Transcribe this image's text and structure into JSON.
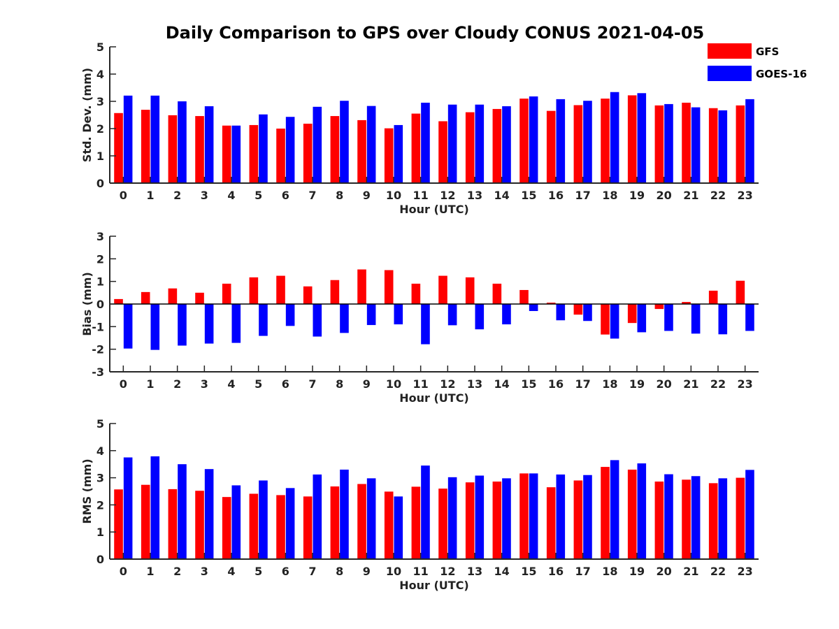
{
  "figure": {
    "title": "Daily Comparison to GPS over Cloudy CONUS 2021-04-05"
  },
  "legend": {
    "placement": "top-right",
    "items": [
      {
        "name": "GFS",
        "color": "#ff0000"
      },
      {
        "name": "GOES-16",
        "color": "#0000ff"
      }
    ]
  },
  "chart_data": [
    {
      "type": "bar",
      "xlabel": "Hour (UTC)",
      "ylabel": "Std. Dev. (mm)",
      "ylim": [
        0,
        5
      ],
      "yticks": [
        0,
        1,
        2,
        3,
        4,
        5
      ],
      "categories": [
        "0",
        "1",
        "2",
        "3",
        "4",
        "5",
        "6",
        "7",
        "8",
        "9",
        "10",
        "11",
        "12",
        "13",
        "14",
        "15",
        "16",
        "17",
        "18",
        "19",
        "20",
        "21",
        "22",
        "23"
      ],
      "series": [
        {
          "name": "GFS",
          "color": "#ff0000",
          "values": [
            2.57,
            2.69,
            2.49,
            2.46,
            2.11,
            2.13,
            2.0,
            2.18,
            2.46,
            2.31,
            2.01,
            2.55,
            2.27,
            2.6,
            2.72,
            3.1,
            2.65,
            2.86,
            3.1,
            3.22,
            2.85,
            2.95,
            2.75,
            2.85
          ]
        },
        {
          "name": "GOES-16",
          "color": "#0000ff",
          "values": [
            3.21,
            3.21,
            3.0,
            2.82,
            2.11,
            2.52,
            2.43,
            2.8,
            3.02,
            2.83,
            2.13,
            2.95,
            2.88,
            2.88,
            2.82,
            3.18,
            3.08,
            3.02,
            3.34,
            3.3,
            2.9,
            2.78,
            2.67,
            3.08
          ]
        }
      ]
    },
    {
      "type": "bar",
      "xlabel": "Hour (UTC)",
      "ylabel": "Bias (mm)",
      "ylim": [
        -3,
        3
      ],
      "yticks": [
        -3,
        -2,
        -1,
        0,
        1,
        2,
        3
      ],
      "categories": [
        "0",
        "1",
        "2",
        "3",
        "4",
        "5",
        "6",
        "7",
        "8",
        "9",
        "10",
        "11",
        "12",
        "13",
        "14",
        "15",
        "16",
        "17",
        "18",
        "19",
        "20",
        "21",
        "22",
        "23"
      ],
      "series": [
        {
          "name": "GFS",
          "color": "#ff0000",
          "values": [
            0.22,
            0.53,
            0.69,
            0.5,
            0.9,
            1.18,
            1.25,
            0.78,
            1.06,
            1.53,
            1.5,
            0.9,
            1.25,
            1.18,
            0.9,
            0.62,
            0.06,
            -0.47,
            -1.35,
            -0.84,
            -0.22,
            0.09,
            0.59,
            1.03
          ]
        },
        {
          "name": "GOES-16",
          "color": "#0000ff",
          "values": [
            -1.97,
            -2.03,
            -1.84,
            -1.75,
            -1.72,
            -1.41,
            -0.97,
            -1.44,
            -1.28,
            -0.93,
            -0.9,
            -1.78,
            -0.94,
            -1.12,
            -0.9,
            -0.31,
            -0.72,
            -0.75,
            -1.53,
            -1.25,
            -1.19,
            -1.31,
            -1.34,
            -1.19
          ]
        }
      ]
    },
    {
      "type": "bar",
      "xlabel": "Hour (UTC)",
      "ylabel": "RMS (mm)",
      "ylim": [
        0,
        5
      ],
      "yticks": [
        0,
        1,
        2,
        3,
        4,
        5
      ],
      "categories": [
        "0",
        "1",
        "2",
        "3",
        "4",
        "5",
        "6",
        "7",
        "8",
        "9",
        "10",
        "11",
        "12",
        "13",
        "14",
        "15",
        "16",
        "17",
        "18",
        "19",
        "20",
        "21",
        "22",
        "23"
      ],
      "series": [
        {
          "name": "GFS",
          "color": "#ff0000",
          "values": [
            2.57,
            2.74,
            2.58,
            2.52,
            2.29,
            2.41,
            2.36,
            2.31,
            2.68,
            2.77,
            2.49,
            2.67,
            2.6,
            2.83,
            2.86,
            3.16,
            2.65,
            2.9,
            3.4,
            3.3,
            2.86,
            2.93,
            2.8,
            3.0
          ]
        },
        {
          "name": "GOES-16",
          "color": "#0000ff",
          "values": [
            3.75,
            3.79,
            3.5,
            3.32,
            2.72,
            2.9,
            2.62,
            3.12,
            3.3,
            2.98,
            2.31,
            3.45,
            3.02,
            3.08,
            2.98,
            3.16,
            3.12,
            3.1,
            3.65,
            3.53,
            3.13,
            3.06,
            2.98,
            3.29
          ]
        }
      ]
    }
  ]
}
